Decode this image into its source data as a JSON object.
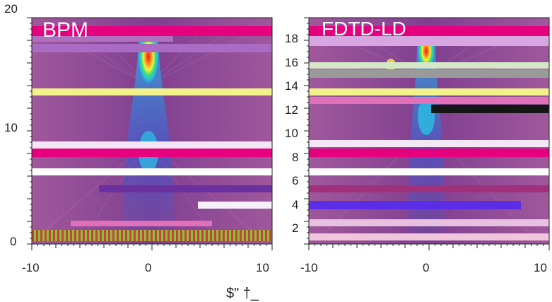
{
  "xlabel": "$\" †_",
  "colors": {
    "background": "#ffffff",
    "axis": "#222222",
    "field_base": "#8a3e8c",
    "glitch_pink": "#e6007e",
    "glitch_green": "#8fbf3a",
    "glitch_yellow": "#f2f28a"
  },
  "chart_data": [
    {
      "type": "heatmap",
      "title": "BPM",
      "x_ticks": [
        "-10",
        "0",
        "10"
      ],
      "y_ticks": [
        "0",
        "10",
        "20"
      ],
      "xlim": [
        -10,
        10
      ],
      "ylim": [
        0,
        20
      ],
      "beam": {
        "axis_x": 0,
        "waist_y": 8,
        "peak_y": 16,
        "colormap": [
          "#8a3e8c",
          "#3b5bd6",
          "#26c6e6",
          "#3ce07a",
          "#f2f23a",
          "#ff8a1a",
          "#e8162b"
        ]
      }
    },
    {
      "type": "heatmap",
      "title": "FDTD-LD",
      "x_ticks": [
        "-10",
        "0",
        "10"
      ],
      "y_ticks": [
        "2",
        "4",
        "6",
        "8",
        "10",
        "12",
        "14",
        "16",
        "18"
      ],
      "xlim": [
        -10,
        10
      ],
      "ylim": [
        0,
        20
      ],
      "beam": {
        "axis_x": 0,
        "waist_y": 10,
        "peak_y": 17,
        "colormap": [
          "#8a3e8c",
          "#3b5bd6",
          "#26c6e6",
          "#3ce07a",
          "#f2f23a",
          "#ff8a1a",
          "#e8162b"
        ]
      }
    }
  ]
}
